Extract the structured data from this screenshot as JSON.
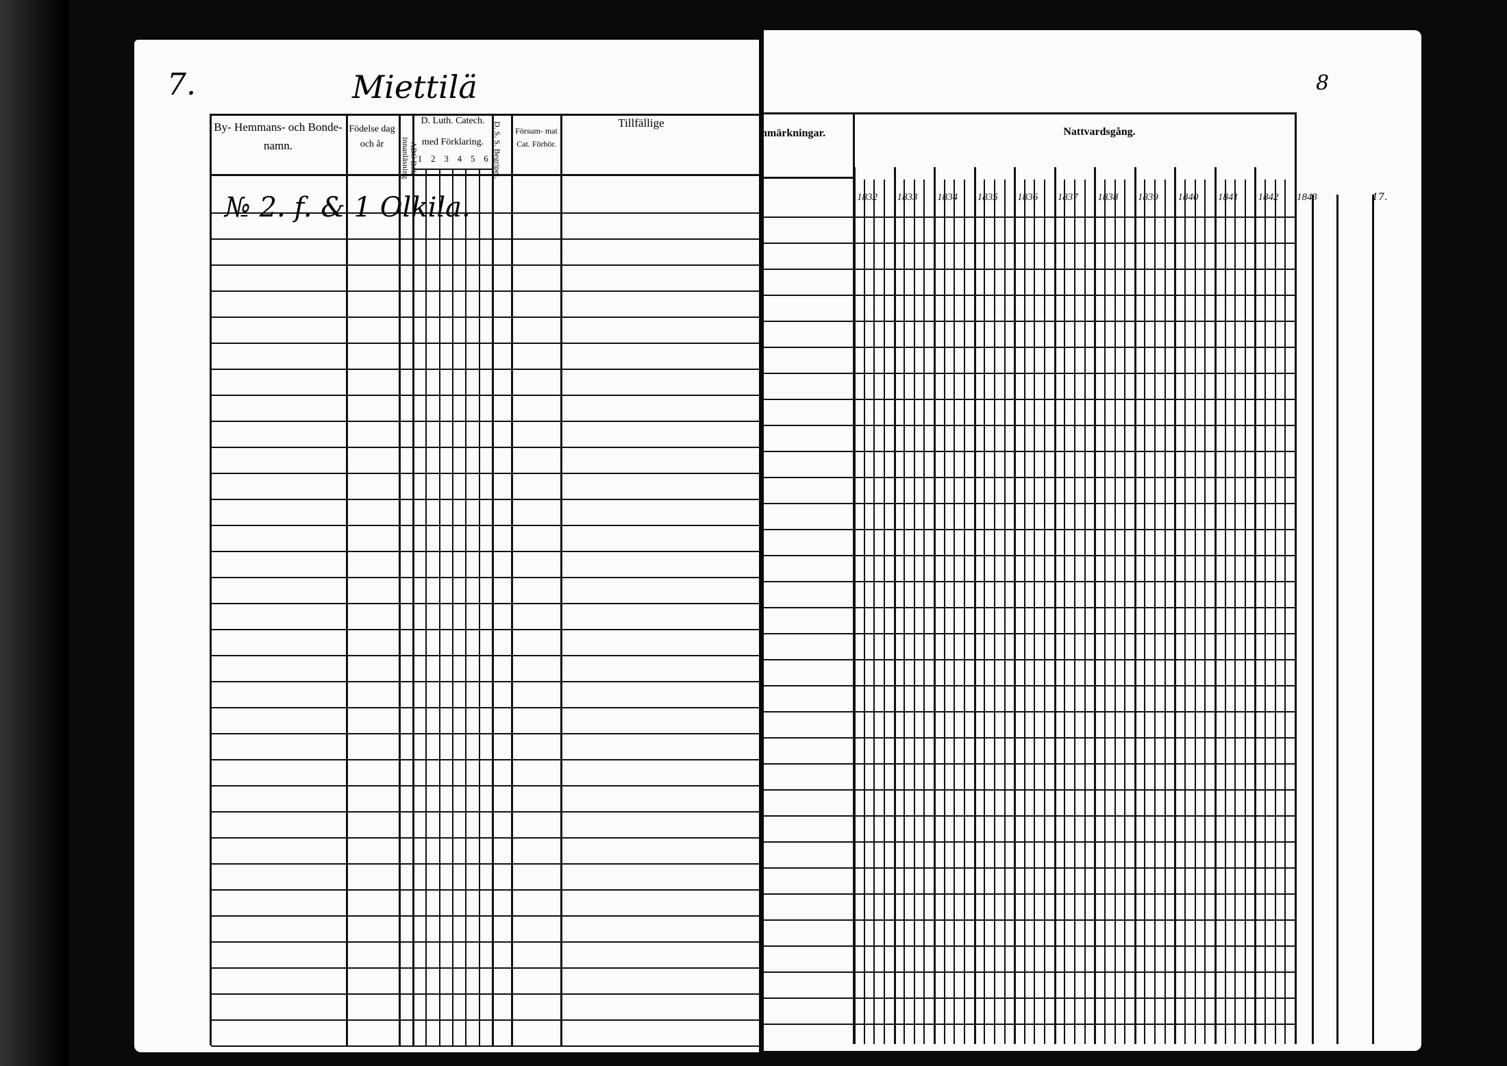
{
  "document": {
    "left_page": {
      "page_number": "7.",
      "village_name": "Miettilä",
      "headers": {
        "name_col": "By- Hemmans- och Bonde-namn.",
        "birth_col": "Födelse dag och år",
        "abc_col": "ABC Bok innanläsning",
        "catech_col": "D. Luth. Catech. med Förklaring.",
        "catech_subcols": [
          "1",
          "2",
          "3",
          "4",
          "5",
          "6"
        ],
        "dss_col": "D. S. S. Begripet.",
        "forsummat_col": "Försum- mat Cat. Förhör.",
        "tillfallige_col": "Tillfällige"
      },
      "first_entry": "№ 2. f. & 1 Olkila."
    },
    "right_page": {
      "page_number": "8",
      "headers": {
        "remarks_col": "nmärkningar.",
        "communion_col": "Nattvardsgång."
      },
      "years": [
        "1832",
        "1833",
        "1834",
        "1835",
        "1836",
        "1837",
        "1838",
        "1839",
        "1840",
        "1841",
        "1842",
        "1843"
      ],
      "margin_note": "17."
    }
  }
}
